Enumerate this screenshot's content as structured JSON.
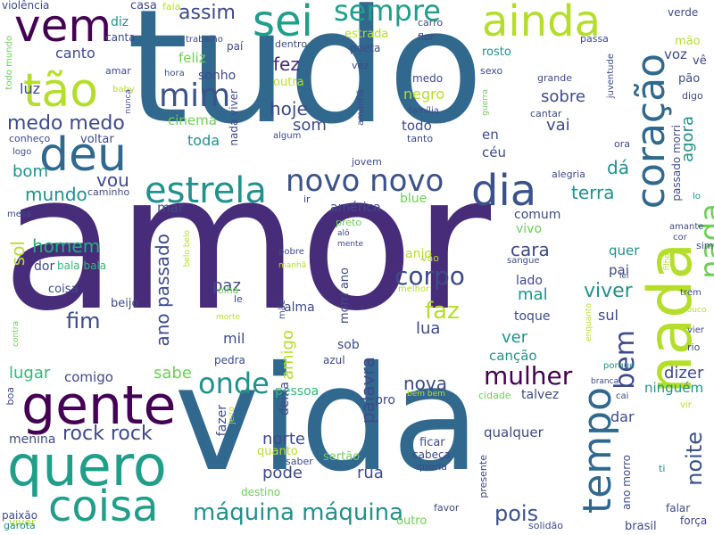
{
  "words": [
    {
      "text": "amor",
      "color": "#472c7a"
    },
    {
      "text": "vida",
      "color": "#31688e"
    },
    {
      "text": "tudo",
      "color": "#31688e"
    },
    {
      "text": "nada",
      "color": "#b5de2b"
    },
    {
      "text": "quero",
      "color": "#1f9e89"
    },
    {
      "text": "gente",
      "color": "#440154"
    },
    {
      "text": "coisa",
      "color": "#1f9e89"
    },
    {
      "text": "deu",
      "color": "#31688e"
    },
    {
      "text": "tão",
      "color": "#b5de2b"
    },
    {
      "text": "vem",
      "color": "#440154"
    },
    {
      "text": "sei",
      "color": "#1f9e89"
    },
    {
      "text": "ainda",
      "color": "#b5de2b"
    },
    {
      "text": "coração",
      "color": "#31688e"
    },
    {
      "text": "dia",
      "color": "#3b528b"
    },
    {
      "text": "nada",
      "color": "#6ece58"
    },
    {
      "text": "tempo",
      "color": "#31688e"
    },
    {
      "text": "estrela",
      "color": "#21918c"
    },
    {
      "text": "novo novo",
      "color": "#3b528b"
    },
    {
      "text": "sempre",
      "color": "#1f9e89"
    },
    {
      "text": "onde",
      "color": "#21918c"
    },
    {
      "text": "mim",
      "color": "#3b528b"
    },
    {
      "text": "máquina máquina",
      "color": "#21918c"
    },
    {
      "text": "rock rock",
      "color": "#3e4a89"
    },
    {
      "text": "bem",
      "color": "#3e4a89"
    },
    {
      "text": "mulher",
      "color": "#440154"
    },
    {
      "text": "corpo",
      "color": "#3e4a89"
    },
    {
      "text": "faz",
      "color": "#b5de2b"
    },
    {
      "text": "pois",
      "color": "#3b528b"
    },
    {
      "text": "noite",
      "color": "#3b528b"
    },
    {
      "text": "viver",
      "color": "#21918c"
    },
    {
      "text": "ano passado",
      "color": "#3e4a89"
    },
    {
      "text": "assim",
      "color": "#3e4a89"
    },
    {
      "text": "fez",
      "color": "#482878"
    },
    {
      "text": "hoje",
      "color": "#3e4a89"
    },
    {
      "text": "som",
      "color": "#3e4a89"
    },
    {
      "text": "medo medo",
      "color": "#3e4a89"
    },
    {
      "text": "vou",
      "color": "#3e4a89"
    },
    {
      "text": "fim",
      "color": "#3e4a89"
    },
    {
      "text": "homem",
      "color": "#26ad81"
    },
    {
      "text": "mundo",
      "color": "#21918c"
    },
    {
      "text": "bom",
      "color": "#21918c"
    },
    {
      "text": "sol",
      "color": "#b5de2b"
    },
    {
      "text": "amigo",
      "color": "#b5de2b"
    },
    {
      "text": "paz",
      "color": "#3e4a89"
    },
    {
      "text": "nova",
      "color": "#3e4a89"
    },
    {
      "text": "palavra",
      "color": "#3e4a89"
    },
    {
      "text": "lugar",
      "color": "#35b779"
    },
    {
      "text": "norte",
      "color": "#3e4a89"
    },
    {
      "text": "pode",
      "color": "#3e4a89"
    },
    {
      "text": "terra",
      "color": "#21918c"
    },
    {
      "text": "dá",
      "color": "#21918c"
    },
    {
      "text": "cara",
      "color": "#3e4a89"
    },
    {
      "text": "mal",
      "color": "#21918c"
    },
    {
      "text": "ver",
      "color": "#21918c"
    },
    {
      "text": "lua",
      "color": "#3e4a89"
    },
    {
      "text": "agora",
      "color": "#21918c"
    },
    {
      "text": "dizer",
      "color": "#3e4a89"
    },
    {
      "text": "sobre",
      "color": "#3e4a89"
    },
    {
      "text": "vai",
      "color": "#3e4a89"
    },
    {
      "text": "rua",
      "color": "#3e4a89"
    },
    {
      "text": "qualquer",
      "color": "#3e4a89"
    },
    {
      "text": "menina",
      "color": "#3e4a89"
    },
    {
      "text": "sul",
      "color": "#3e4a89"
    },
    {
      "text": "dar",
      "color": "#3e4a89"
    },
    {
      "text": "canção",
      "color": "#21918c"
    },
    {
      "text": "ninguém",
      "color": "#21918c"
    },
    {
      "text": "sabe",
      "color": "#6ece58"
    },
    {
      "text": "mil",
      "color": "#3e4a89"
    },
    {
      "text": "luz",
      "color": "#3e4a89"
    },
    {
      "text": "negro",
      "color": "#b5de2b"
    },
    {
      "text": "todo",
      "color": "#3e4a89"
    },
    {
      "text": "canto",
      "color": "#3e4a89"
    },
    {
      "text": "feliz",
      "color": "#6ece58"
    },
    {
      "text": "sonho",
      "color": "#3e4a89"
    },
    {
      "text": "cinema",
      "color": "#6ece58"
    },
    {
      "text": "toda",
      "color": "#21918c"
    },
    {
      "text": "voz",
      "color": "#3e4a89"
    },
    {
      "text": "mar",
      "color": "#3e4a89"
    },
    {
      "text": "comum",
      "color": "#3e4a89"
    },
    {
      "text": "lado",
      "color": "#3e4a89"
    },
    {
      "text": "quer",
      "color": "#21918c"
    },
    {
      "text": "pai",
      "color": "#3e4a89"
    },
    {
      "text": "comigo",
      "color": "#3e4a89"
    },
    {
      "text": "alma",
      "color": "#3e4a89"
    },
    {
      "text": "sob",
      "color": "#3e4a89"
    },
    {
      "text": "dor",
      "color": "#3e4a89"
    },
    {
      "text": "céu",
      "color": "#3e4a89"
    },
    {
      "text": "en",
      "color": "#3e4a89"
    },
    {
      "text": "blue",
      "color": "#6ece58"
    },
    {
      "text": "américa",
      "color": "#3e4a89"
    },
    {
      "text": "vivo",
      "color": "#6ece58"
    },
    {
      "text": "anjo",
      "color": "#b5de2b"
    },
    {
      "text": "toque",
      "color": "#3e4a89"
    },
    {
      "text": "talvez",
      "color": "#3e4a89"
    },
    {
      "text": "pessoa",
      "color": "#35b779"
    },
    {
      "text": "deixa",
      "color": "#3e4a89"
    },
    {
      "text": "fazer",
      "color": "#3e4a89"
    },
    {
      "text": "quanto",
      "color": "#b5de2b"
    },
    {
      "text": "pro",
      "color": "#3e4a89"
    },
    {
      "text": "morri ano",
      "color": "#3e4a89"
    },
    {
      "text": "viver",
      "color": "#b5de2b"
    },
    {
      "text": "passado morri",
      "color": "#3e4a89"
    },
    {
      "text": "ano morro",
      "color": "#3e4a89"
    },
    {
      "text": "coisa",
      "color": "#3e4a89"
    },
    {
      "text": "beijo",
      "color": "#3e4a89"
    },
    {
      "text": "bala bala",
      "color": "#35b779"
    },
    {
      "text": "olha",
      "color": "#6ece58"
    },
    {
      "text": "pedra",
      "color": "#3e4a89"
    },
    {
      "text": "azul",
      "color": "#3e4a89"
    },
    {
      "text": "ficar",
      "color": "#3e4a89"
    },
    {
      "text": "cabeça",
      "color": "#3e4a89"
    },
    {
      "text": "queria",
      "color": "#3e4a89"
    },
    {
      "text": "sertão",
      "color": "#6ece58"
    },
    {
      "text": "saber",
      "color": "#3e4a89"
    },
    {
      "text": "destino",
      "color": "#6ece58"
    },
    {
      "text": "outro",
      "color": "#6ece58"
    },
    {
      "text": "favor",
      "color": "#3e4a89"
    },
    {
      "text": "presente",
      "color": "#3e4a89"
    },
    {
      "text": "solidão",
      "color": "#3e4a89"
    },
    {
      "text": "brasil",
      "color": "#3e4a89"
    },
    {
      "text": "falar",
      "color": "#3e4a89"
    },
    {
      "text": "força",
      "color": "#3e4a89"
    },
    {
      "text": "paixão",
      "color": "#3e4a89"
    },
    {
      "text": "garota",
      "color": "#21918c"
    },
    {
      "text": "boa",
      "color": "#3e4a89"
    },
    {
      "text": "violência",
      "color": "#3e4a89"
    },
    {
      "text": "diz",
      "color": "#21918c"
    },
    {
      "text": "canta",
      "color": "#3e4a89"
    },
    {
      "text": "casa",
      "color": "#3e4a89"
    },
    {
      "text": "fala",
      "color": "#b5de2b"
    },
    {
      "text": "trabalho",
      "color": "#3e4a89"
    },
    {
      "text": "paí",
      "color": "#3e4a89"
    },
    {
      "text": "carro",
      "color": "#3e4a89"
    },
    {
      "text": "flor",
      "color": "#3e4a89"
    },
    {
      "text": "estrada",
      "color": "#b5de2b"
    },
    {
      "text": "poeta",
      "color": "#3e4a89"
    },
    {
      "text": "dentro",
      "color": "#3e4a89"
    },
    {
      "text": "rosto",
      "color": "#21918c"
    },
    {
      "text": "passa",
      "color": "#3e4a89"
    },
    {
      "text": "verde",
      "color": "#3e4a89"
    },
    {
      "text": "mão",
      "color": "#b5de2b"
    },
    {
      "text": "vê",
      "color": "#3e4a89"
    },
    {
      "text": "pão",
      "color": "#3e4a89"
    },
    {
      "text": "digo",
      "color": "#3e4a89"
    },
    {
      "text": "amar",
      "color": "#3e4a89"
    },
    {
      "text": "baby",
      "color": "#b5de2b"
    },
    {
      "text": "hora",
      "color": "#3e4a89"
    },
    {
      "text": "outra",
      "color": "#b5de2b"
    },
    {
      "text": "vez",
      "color": "#3e4a89"
    },
    {
      "text": "medo",
      "color": "#3e4a89"
    },
    {
      "text": "sexo",
      "color": "#3e4a89"
    },
    {
      "text": "grande",
      "color": "#3e4a89"
    },
    {
      "text": "cantar",
      "color": "#3e4a89"
    },
    {
      "text": "família",
      "color": "#3e4a89"
    },
    {
      "text": "tanto",
      "color": "#3e4a89"
    },
    {
      "text": "algum",
      "color": "#3e4a89"
    },
    {
      "text": "conheço",
      "color": "#3e4a89"
    },
    {
      "text": "voltar",
      "color": "#3e4a89"
    },
    {
      "text": "logo",
      "color": "#3e4a89"
    },
    {
      "text": "caminho",
      "color": "#3e4a89"
    },
    {
      "text": "jovem",
      "color": "#3e4a89"
    },
    {
      "text": "alegria",
      "color": "#3e4a89"
    },
    {
      "text": "ora",
      "color": "#3e4a89"
    },
    {
      "text": "ir",
      "color": "#3e4a89"
    },
    {
      "text": "preto",
      "color": "#6ece58"
    },
    {
      "text": "alô",
      "color": "#3e4a89"
    },
    {
      "text": "mente",
      "color": "#3e4a89"
    },
    {
      "text": "pobre",
      "color": "#3e4a89"
    },
    {
      "text": "vão",
      "color": "#b5de2b"
    },
    {
      "text": "sangue",
      "color": "#3e4a89"
    },
    {
      "text": "melhor",
      "color": "#b5de2b"
    },
    {
      "text": "manhã",
      "color": "#b5de2b"
    },
    {
      "text": "le",
      "color": "#3e4a89"
    },
    {
      "text": "morte",
      "color": "#b5de2b"
    },
    {
      "text": "mãe",
      "color": "#3e4a89"
    },
    {
      "text": "mesa",
      "color": "#3e4a89"
    },
    {
      "text": "lo",
      "color": "#21918c"
    },
    {
      "text": "amante",
      "color": "#3e4a89"
    },
    {
      "text": "cor",
      "color": "#3e4a89"
    },
    {
      "text": "sim",
      "color": "#3e4a89"
    },
    {
      "text": "lei",
      "color": "#3e4a89"
    },
    {
      "text": "trem",
      "color": "#3e4a89"
    },
    {
      "text": "pouco",
      "color": "#b5de2b"
    },
    {
      "text": "vier",
      "color": "#3e4a89"
    },
    {
      "text": "rio",
      "color": "#3e4a89"
    },
    {
      "text": "porque",
      "color": "#21918c"
    },
    {
      "text": "branca",
      "color": "#3e4a89"
    },
    {
      "text": "cai",
      "color": "#3e4a89"
    },
    {
      "text": "vir",
      "color": "#b5de2b"
    },
    {
      "text": "ti",
      "color": "#21918c"
    },
    {
      "text": "cidade",
      "color": "#6ece58"
    },
    {
      "text": "bem bem",
      "color": "#b5de2b"
    },
    {
      "text": "todo mundo",
      "color": "#6ece58"
    },
    {
      "text": "nunca",
      "color": "#3e4a89"
    },
    {
      "text": "nada viver",
      "color": "#3e4a89"
    },
    {
      "text": "amanhã",
      "color": "#3e4a89"
    },
    {
      "text": "guerra",
      "color": "#6ece58"
    },
    {
      "text": "juventude",
      "color": "#3e4a89"
    },
    {
      "text": "belo belo",
      "color": "#b5de2b"
    },
    {
      "text": "contra",
      "color": "#6ece58"
    },
    {
      "text": "jeito",
      "color": "#b5de2b"
    },
    {
      "text": "enquanto",
      "color": "#b5de2b"
    },
    {
      "text": "filho",
      "color": "#b5de2b"
    }
  ]
}
